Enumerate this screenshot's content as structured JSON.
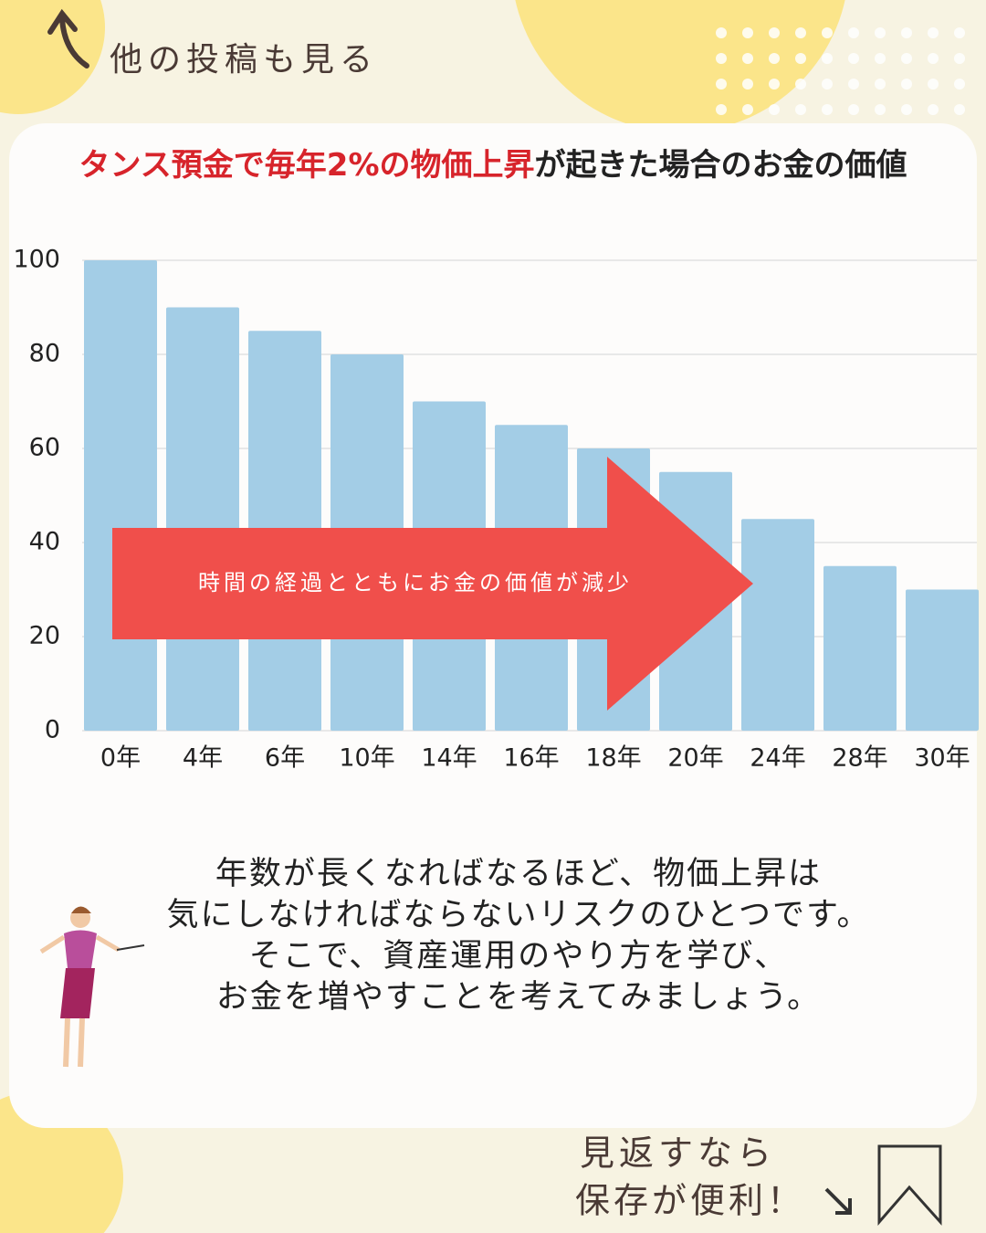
{
  "header": {
    "link": "他の投稿も見る"
  },
  "chart_data": {
    "type": "bar",
    "title": [
      "タンス預金で毎年2%の物価上昇",
      "が起きた場合のお金の価値"
    ],
    "categories": [
      "0年",
      "4年",
      "6年",
      "10年",
      "14年",
      "16年",
      "18年",
      "20年",
      "24年",
      "28年",
      "30年"
    ],
    "values": [
      100,
      90,
      85,
      80,
      70,
      65,
      60,
      55,
      45,
      35,
      30
    ],
    "color": "#a3cde6",
    "ylim": [
      0,
      100
    ],
    "yticks": [
      0,
      20,
      40,
      60,
      80,
      100
    ],
    "grid": true,
    "annotation": "時間の経過とともにお金の価値が減少"
  },
  "body": [
    "年数が長くなればなるほど、物価上昇は",
    "気にしなければならないリスクのひとつです。",
    "そこで、資産運用のやり方を学び、",
    "お金を増やすことを考えてみましょう。"
  ],
  "footer": [
    "見返すなら",
    "保存が便利！"
  ]
}
